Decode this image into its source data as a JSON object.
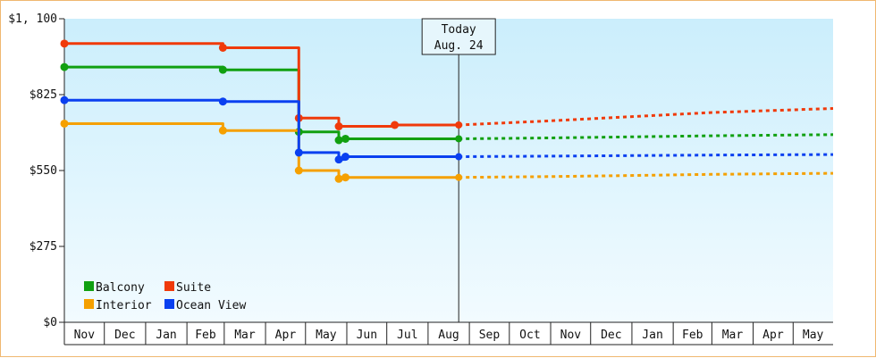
{
  "chart_data": {
    "type": "line",
    "y_tick_labels": [
      "$0",
      "$275",
      "$550",
      "$825",
      "$1, 100"
    ],
    "y_ticks": [
      0,
      275,
      550,
      825,
      1100
    ],
    "ylim": [
      0,
      1100
    ],
    "month_labels": [
      "Nov",
      "Dec",
      "Jan",
      "Feb",
      "Mar",
      "Apr",
      "May",
      "Jun",
      "Jul",
      "Aug",
      "Sep",
      "Oct",
      "Nov",
      "Dec",
      "Jan",
      "Feb",
      "Mar",
      "Apr",
      "May"
    ],
    "x_start": "2014-11-01",
    "x_end": "2016-05-31",
    "today": {
      "label_line1": "Today",
      "label_line2": "Aug. 24",
      "date": "2015-08-24"
    },
    "series": [
      {
        "name": "Balcony",
        "color": "#11a011",
        "points": [
          [
            "2014-11-01",
            925
          ],
          [
            "2015-02-28",
            925
          ],
          [
            "2015-02-28",
            915
          ],
          [
            "2015-04-26",
            915
          ],
          [
            "2015-04-26",
            690
          ],
          [
            "2015-05-26",
            690
          ],
          [
            "2015-05-26",
            660
          ],
          [
            "2015-05-31",
            660
          ],
          [
            "2015-05-31",
            665
          ],
          [
            "2015-08-24",
            665
          ]
        ],
        "markers": [
          "2014-11-01",
          "2015-02-28",
          "2015-04-26",
          "2015-05-26",
          "2015-05-31"
        ],
        "forecast": [
          [
            "2015-08-24",
            665
          ],
          [
            "2015-10-31",
            668
          ],
          [
            "2015-12-31",
            672
          ],
          [
            "2016-02-29",
            676
          ],
          [
            "2016-05-31",
            680
          ]
        ]
      },
      {
        "name": "Suite",
        "color": "#f03a0a",
        "points": [
          [
            "2014-11-01",
            1010
          ],
          [
            "2015-02-28",
            1010
          ],
          [
            "2015-02-28",
            995
          ],
          [
            "2015-04-26",
            995
          ],
          [
            "2015-04-26",
            740
          ],
          [
            "2015-05-26",
            740
          ],
          [
            "2015-05-26",
            710
          ],
          [
            "2015-07-07",
            710
          ],
          [
            "2015-07-07",
            715
          ],
          [
            "2015-08-24",
            715
          ]
        ],
        "markers": [
          "2014-11-01",
          "2015-02-28",
          "2015-04-26",
          "2015-05-26",
          "2015-07-07"
        ],
        "forecast": [
          [
            "2015-08-24",
            715
          ],
          [
            "2015-10-31",
            730
          ],
          [
            "2015-12-31",
            745
          ],
          [
            "2016-02-29",
            760
          ],
          [
            "2016-05-31",
            775
          ]
        ]
      },
      {
        "name": "Interior",
        "color": "#f5a000",
        "points": [
          [
            "2014-11-01",
            720
          ],
          [
            "2015-02-28",
            720
          ],
          [
            "2015-02-28",
            695
          ],
          [
            "2015-04-26",
            695
          ],
          [
            "2015-04-26",
            550
          ],
          [
            "2015-05-26",
            550
          ],
          [
            "2015-05-26",
            520
          ],
          [
            "2015-05-31",
            520
          ],
          [
            "2015-05-31",
            525
          ],
          [
            "2015-08-24",
            525
          ]
        ],
        "markers": [
          "2014-11-01",
          "2015-02-28",
          "2015-04-26",
          "2015-05-26",
          "2015-05-31"
        ],
        "forecast": [
          [
            "2015-08-24",
            525
          ],
          [
            "2015-10-31",
            528
          ],
          [
            "2015-12-31",
            532
          ],
          [
            "2016-02-29",
            536
          ],
          [
            "2016-05-31",
            540
          ]
        ]
      },
      {
        "name": "Ocean View",
        "color": "#0a40f0",
        "points": [
          [
            "2014-11-01",
            805
          ],
          [
            "2015-02-28",
            805
          ],
          [
            "2015-02-28",
            800
          ],
          [
            "2015-04-26",
            800
          ],
          [
            "2015-04-26",
            615
          ],
          [
            "2015-05-26",
            615
          ],
          [
            "2015-05-26",
            590
          ],
          [
            "2015-05-31",
            590
          ],
          [
            "2015-05-31",
            600
          ],
          [
            "2015-08-24",
            600
          ]
        ],
        "markers": [
          "2014-11-01",
          "2015-02-28",
          "2015-04-26",
          "2015-05-26",
          "2015-05-31"
        ],
        "forecast": [
          [
            "2015-08-24",
            600
          ],
          [
            "2015-10-31",
            602
          ],
          [
            "2015-12-31",
            604
          ],
          [
            "2016-02-29",
            606
          ],
          [
            "2016-05-31",
            608
          ]
        ]
      }
    ],
    "legend": [
      {
        "label": "Balcony",
        "color": "#11a011"
      },
      {
        "label": "Suite",
        "color": "#f03a0a"
      },
      {
        "label": "Interior",
        "color": "#f5a000"
      },
      {
        "label": "Ocean View",
        "color": "#0a40f0"
      }
    ],
    "legend_position": "bottom-left",
    "background_gradient": [
      "#cbeefc",
      "#f2fbff"
    ],
    "grid": false
  }
}
